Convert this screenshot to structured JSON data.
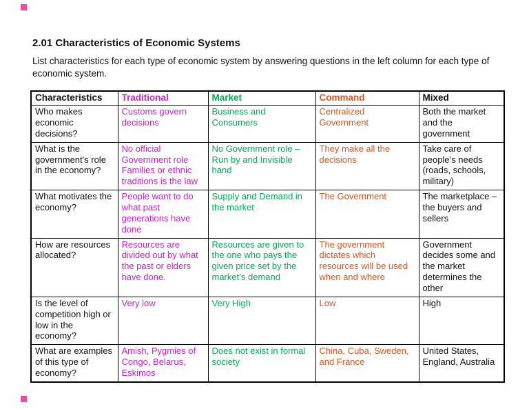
{
  "page": {
    "title": "2.01 Characteristics of Economic Systems",
    "subtitle": "List characteristics for each type of economic system by answering questions in the left column for each type of economic system."
  },
  "colors": {
    "traditional": "#cc22cc",
    "market": "#00b050",
    "command": "#e0541c",
    "default": "#111111",
    "marker": "#ee4d9b"
  },
  "table": {
    "headers": [
      {
        "label": "Characteristics",
        "color_key": "default"
      },
      {
        "label": "Traditional",
        "color_key": "traditional"
      },
      {
        "label": "Market",
        "color_key": "market"
      },
      {
        "label": "Command",
        "color_key": "command"
      },
      {
        "label": "Mixed",
        "color_key": "default"
      }
    ],
    "rows": [
      {
        "question": "Who makes economic decisions?",
        "cells": [
          "Customs govern decisions",
          "Business and Consumers",
          "Centralized Government",
          "Both the market and the government"
        ]
      },
      {
        "question": "What is the government's role in the economy?",
        "cells": [
          "No official Government role Families or ethnic traditions is the law",
          "No Government role – Run by and Invisible hand",
          "They make all the decisions",
          "Take care of people’s needs (roads, schools, military)"
        ]
      },
      {
        "question": "What motivates the economy?",
        "cells": [
          "People want to do what past generations have done",
          "Supply and Demand in the market",
          "The Government",
          "The marketplace – the buyers and sellers"
        ]
      },
      {
        "question": "How are resources allocated?",
        "cells": [
          "Resources are divided out by what the past or elders have done.",
          "Resources are given to the one who pays the given price set by the market’s demand",
          "The government dictates which resources will be used when and where",
          "Government decides some and the market determines the other"
        ]
      },
      {
        "question": "Is the level of competition high or low in the economy?",
        "cells": [
          "Very low",
          "Very High",
          "Low",
          "High"
        ]
      },
      {
        "question": "What are examples of this type of economy?",
        "cells": [
          "Amish, Pygmies of Congo, Belarus, Eskimos",
          "Does not exist in formal society",
          "China, Cuba, Sweden, and France",
          "United States, England, Australia"
        ]
      }
    ]
  }
}
